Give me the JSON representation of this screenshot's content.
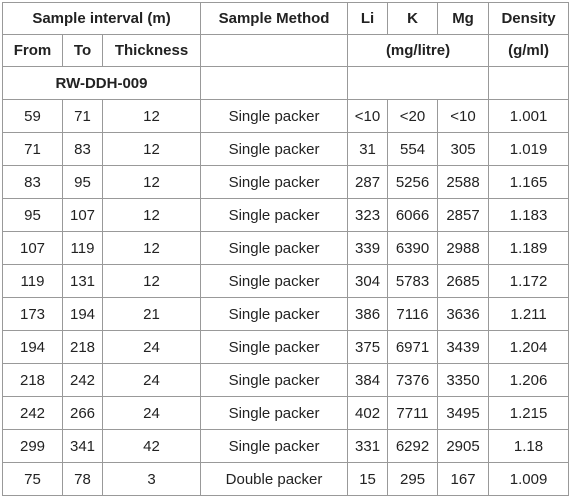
{
  "header": {
    "sample_interval": "Sample interval (m)",
    "sample_method": "Sample Method",
    "li": "Li",
    "k": "K",
    "mg": "Mg",
    "density": "Density",
    "from": "From",
    "to": "To",
    "thickness": "Thickness",
    "conc_unit": "(mg/litre)",
    "density_unit": "(g/ml)"
  },
  "group": {
    "label": "RW-DDH-009"
  },
  "rows": [
    {
      "from": "59",
      "to": "71",
      "thickness": "12",
      "method": "Single packer",
      "li": "<10",
      "k": "<20",
      "mg": "<10",
      "density": "1.001"
    },
    {
      "from": "71",
      "to": "83",
      "thickness": "12",
      "method": "Single packer",
      "li": "31",
      "k": "554",
      "mg": "305",
      "density": "1.019"
    },
    {
      "from": "83",
      "to": "95",
      "thickness": "12",
      "method": "Single packer",
      "li": "287",
      "k": "5256",
      "mg": "2588",
      "density": "1.165"
    },
    {
      "from": "95",
      "to": "107",
      "thickness": "12",
      "method": "Single packer",
      "li": "323",
      "k": "6066",
      "mg": "2857",
      "density": "1.183"
    },
    {
      "from": "107",
      "to": "119",
      "thickness": "12",
      "method": "Single packer",
      "li": "339",
      "k": "6390",
      "mg": "2988",
      "density": "1.189"
    },
    {
      "from": "119",
      "to": "131",
      "thickness": "12",
      "method": "Single packer",
      "li": "304",
      "k": "5783",
      "mg": "2685",
      "density": "1.172"
    },
    {
      "from": "173",
      "to": "194",
      "thickness": "21",
      "method": "Single packer",
      "li": "386",
      "k": "7116",
      "mg": "3636",
      "density": "1.211"
    },
    {
      "from": "194",
      "to": "218",
      "thickness": "24",
      "method": "Single packer",
      "li": "375",
      "k": "6971",
      "mg": "3439",
      "density": "1.204"
    },
    {
      "from": "218",
      "to": "242",
      "thickness": "24",
      "method": "Single packer",
      "li": "384",
      "k": "7376",
      "mg": "3350",
      "density": "1.206"
    },
    {
      "from": "242",
      "to": "266",
      "thickness": "24",
      "method": "Single packer",
      "li": "402",
      "k": "7711",
      "mg": "3495",
      "density": "1.215"
    },
    {
      "from": "299",
      "to": "341",
      "thickness": "42",
      "method": "Single packer",
      "li": "331",
      "k": "6292",
      "mg": "2905",
      "density": "1.18"
    },
    {
      "from": "75",
      "to": "78",
      "thickness": "3",
      "method": "Double packer",
      "li": "15",
      "k": "295",
      "mg": "167",
      "density": "1.009"
    }
  ]
}
